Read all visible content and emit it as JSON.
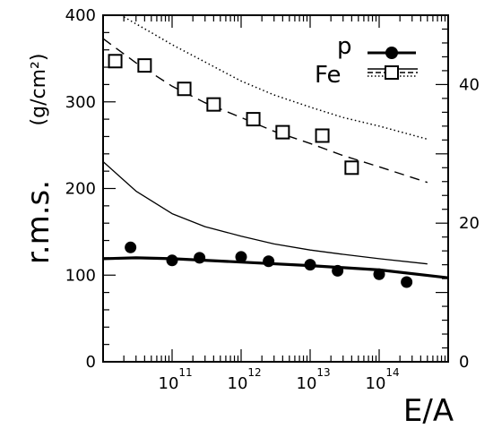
{
  "chart_data": {
    "type": "scatter",
    "title": "",
    "xlabel": "E/A",
    "ylabel_main": "r.m.s.",
    "ylabel_units": "(g/cm²)",
    "x_scale": "log",
    "xlim": [
      10000000000,
      1000000000000000
    ],
    "ylim_left": [
      0,
      400
    ],
    "ylim_right": [
      0,
      50
    ],
    "y_ticks_left": [
      {
        "value": 0,
        "label": "0"
      },
      {
        "value": 100,
        "label": "100"
      },
      {
        "value": 200,
        "label": "200"
      },
      {
        "value": 300,
        "label": "300"
      },
      {
        "value": 400,
        "label": "400"
      }
    ],
    "y_ticks_right": [
      {
        "value": 0,
        "label": "0"
      },
      {
        "value": 20,
        "label": "20"
      },
      {
        "value": 40,
        "label": "40"
      }
    ],
    "x_ticks": [
      {
        "value": 100000000000,
        "base": "10",
        "exp": "11"
      },
      {
        "value": 1000000000000,
        "base": "10",
        "exp": "12"
      },
      {
        "value": 10000000000000,
        "base": "10",
        "exp": "13"
      },
      {
        "value": 100000000000000,
        "base": "10",
        "exp": "14"
      }
    ],
    "legend": [
      {
        "label": "p",
        "marker": "filled-circle",
        "line": "solid-thick"
      },
      {
        "label": "Fe",
        "marker": "open-square",
        "line": "solid-thin + dashed + dotted"
      }
    ],
    "series": [
      {
        "name": "p",
        "marker": "filled-circle",
        "x": [
          25000000000,
          100000000000,
          250000000000,
          1000000000000,
          2500000000000,
          10000000000000,
          25000000000000,
          100000000000000,
          250000000000000
        ],
        "y": [
          132,
          117,
          120,
          121,
          116,
          112,
          105,
          101,
          92
        ]
      },
      {
        "name": "Fe",
        "marker": "open-square",
        "x": [
          15000000000,
          40000000000,
          150000000000,
          400000000000,
          1500000000000,
          4000000000000,
          15000000000000,
          40000000000000
        ],
        "y": [
          347,
          342,
          315,
          297,
          280,
          265,
          261,
          224
        ]
      },
      {
        "style": "thick-solid",
        "x": [
          10000000000,
          30000000000,
          100000000000,
          1000000000000,
          10000000000000,
          100000000000000,
          1000000000000000
        ],
        "y": [
          119,
          120,
          119,
          115,
          111,
          106,
          97
        ]
      },
      {
        "style": "thin-solid",
        "x": [
          10000000000,
          30000000000,
          100000000000,
          300000000000,
          1000000000000,
          3000000000000,
          10000000000000,
          30000000000000,
          100000000000000,
          500000000000000
        ],
        "y": [
          231,
          197,
          171,
          156,
          145,
          136,
          129,
          124,
          119,
          113
        ]
      },
      {
        "style": "dashed",
        "x": [
          10000000000,
          30000000000,
          100000000000,
          300000000000,
          1000000000000,
          3000000000000,
          10000000000000,
          30000000000000,
          100000000000000,
          500000000000000
        ],
        "y": [
          373,
          345,
          318,
          299,
          282,
          266,
          252,
          238,
          225,
          207
        ]
      },
      {
        "style": "dotted",
        "x": [
          20000000000,
          50000000000,
          100000000000,
          300000000000,
          1000000000000,
          3000000000000,
          10000000000000,
          30000000000000,
          100000000000000,
          500000000000000
        ],
        "y": [
          398,
          380,
          366,
          346,
          324,
          308,
          294,
          282,
          272,
          257
        ]
      }
    ]
  }
}
